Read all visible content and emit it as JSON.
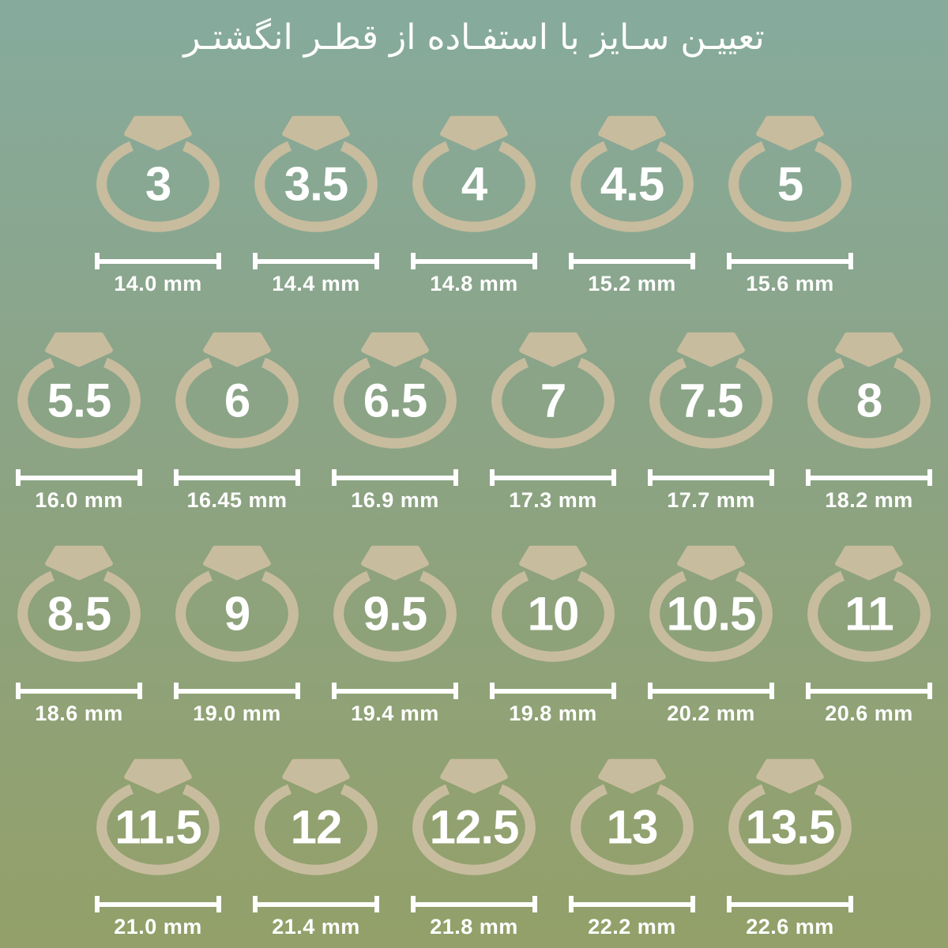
{
  "title": "تعییـن سـایز با استفـاده از قطـر انگشتـر",
  "colors": {
    "bg_top": "#86ab9d",
    "bg_bottom": "#93a069",
    "ring": "#c8bc9e",
    "text": "#ffffff"
  },
  "rows": [
    {
      "rings": [
        {
          "size": "3",
          "diameter": "14.0 mm"
        },
        {
          "size": "3.5",
          "diameter": "14.4 mm"
        },
        {
          "size": "4",
          "diameter": "14.8 mm"
        },
        {
          "size": "4.5",
          "diameter": "15.2 mm"
        },
        {
          "size": "5",
          "diameter": "15.6 mm"
        }
      ]
    },
    {
      "rings": [
        {
          "size": "5.5",
          "diameter": "16.0 mm"
        },
        {
          "size": "6",
          "diameter": "16.45 mm"
        },
        {
          "size": "6.5",
          "diameter": "16.9 mm"
        },
        {
          "size": "7",
          "diameter": "17.3 mm"
        },
        {
          "size": "7.5",
          "diameter": "17.7 mm"
        },
        {
          "size": "8",
          "diameter": "18.2 mm"
        }
      ]
    },
    {
      "rings": [
        {
          "size": "8.5",
          "diameter": "18.6 mm"
        },
        {
          "size": "9",
          "diameter": "19.0 mm"
        },
        {
          "size": "9.5",
          "diameter": "19.4 mm"
        },
        {
          "size": "10",
          "diameter": "19.8 mm"
        },
        {
          "size": "10.5",
          "diameter": "20.2 mm"
        },
        {
          "size": "11",
          "diameter": "20.6 mm"
        }
      ]
    },
    {
      "rings": [
        {
          "size": "11.5",
          "diameter": "21.0 mm"
        },
        {
          "size": "12",
          "diameter": "21.4 mm"
        },
        {
          "size": "12.5",
          "diameter": "21.8 mm"
        },
        {
          "size": "13",
          "diameter": "22.2 mm"
        },
        {
          "size": "13.5",
          "diameter": "22.6 mm"
        }
      ]
    }
  ],
  "chart_data": {
    "type": "table",
    "title": "تعییـن سـایز با استفـاده از قطـر انگشتـر",
    "columns": [
      "ring_size",
      "diameter_mm"
    ],
    "rows": [
      [
        3,
        14.0
      ],
      [
        3.5,
        14.4
      ],
      [
        4,
        14.8
      ],
      [
        4.5,
        15.2
      ],
      [
        5,
        15.6
      ],
      [
        5.5,
        16.0
      ],
      [
        6,
        16.45
      ],
      [
        6.5,
        16.9
      ],
      [
        7,
        17.3
      ],
      [
        7.5,
        17.7
      ],
      [
        8,
        18.2
      ],
      [
        8.5,
        18.6
      ],
      [
        9,
        19.0
      ],
      [
        9.5,
        19.4
      ],
      [
        10,
        19.8
      ],
      [
        10.5,
        20.2
      ],
      [
        11,
        20.6
      ],
      [
        11.5,
        21.0
      ],
      [
        12,
        21.4
      ],
      [
        12.5,
        21.8
      ],
      [
        13,
        22.2
      ],
      [
        13.5,
        22.6
      ]
    ]
  }
}
